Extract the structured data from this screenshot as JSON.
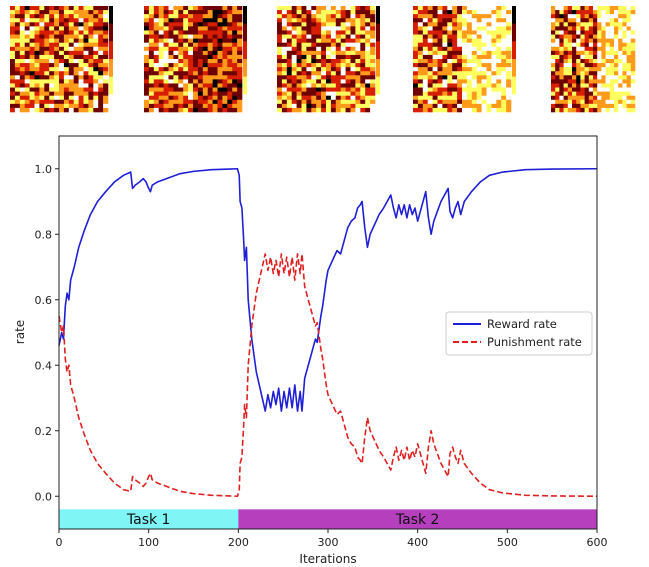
{
  "heatmaps": {
    "count": 5,
    "colormap": "hot",
    "colors": [
      "#ffffff",
      "#ffff60",
      "#ff9a1a",
      "#d81e00",
      "#6e0000",
      "#000000"
    ]
  },
  "chart_data": {
    "type": "line",
    "title": "",
    "xlabel": "Iterations",
    "ylabel": "rate",
    "xlim": [
      0,
      600
    ],
    "ylim": [
      -0.1,
      1.1
    ],
    "xticks": [
      0,
      100,
      200,
      300,
      400,
      500,
      600
    ],
    "yticks": [
      0.0,
      0.2,
      0.4,
      0.6,
      0.8,
      1.0
    ],
    "ytick_labels": [
      "0.0",
      "0.2",
      "0.4",
      "0.6",
      "0.8",
      "1.0"
    ],
    "grid": false,
    "legend_position": "center-right",
    "series": [
      {
        "name": "Reward rate",
        "style": "solid",
        "color": "#1f1fd6",
        "points": [
          [
            0,
            0.46
          ],
          [
            3,
            0.5
          ],
          [
            5,
            0.48
          ],
          [
            7,
            0.58
          ],
          [
            9,
            0.62
          ],
          [
            11,
            0.6
          ],
          [
            13,
            0.66
          ],
          [
            17,
            0.7
          ],
          [
            22,
            0.76
          ],
          [
            28,
            0.81
          ],
          [
            35,
            0.86
          ],
          [
            43,
            0.9
          ],
          [
            52,
            0.93
          ],
          [
            62,
            0.96
          ],
          [
            72,
            0.98
          ],
          [
            80,
            0.99
          ],
          [
            82,
            0.94
          ],
          [
            85,
            0.95
          ],
          [
            90,
            0.96
          ],
          [
            94,
            0.97
          ],
          [
            97,
            0.96
          ],
          [
            100,
            0.94
          ],
          [
            102,
            0.93
          ],
          [
            104,
            0.95
          ],
          [
            110,
            0.96
          ],
          [
            120,
            0.97
          ],
          [
            135,
            0.985
          ],
          [
            150,
            0.992
          ],
          [
            170,
            0.997
          ],
          [
            190,
            0.999
          ],
          [
            199,
            1.0
          ],
          [
            201,
            0.98
          ],
          [
            202,
            0.9
          ],
          [
            204,
            0.88
          ],
          [
            206,
            0.78
          ],
          [
            207,
            0.72
          ],
          [
            209,
            0.76
          ],
          [
            211,
            0.6
          ],
          [
            215,
            0.48
          ],
          [
            220,
            0.38
          ],
          [
            225,
            0.32
          ],
          [
            230,
            0.26
          ],
          [
            233,
            0.31
          ],
          [
            236,
            0.27
          ],
          [
            239,
            0.32
          ],
          [
            242,
            0.28
          ],
          [
            245,
            0.33
          ],
          [
            248,
            0.26
          ],
          [
            251,
            0.32
          ],
          [
            254,
            0.27
          ],
          [
            257,
            0.33
          ],
          [
            260,
            0.27
          ],
          [
            263,
            0.34
          ],
          [
            266,
            0.26
          ],
          [
            269,
            0.32
          ],
          [
            271,
            0.26
          ],
          [
            274,
            0.36
          ],
          [
            278,
            0.4
          ],
          [
            282,
            0.44
          ],
          [
            286,
            0.48
          ],
          [
            288,
            0.47
          ],
          [
            290,
            0.51
          ],
          [
            292,
            0.55
          ],
          [
            294,
            0.58
          ],
          [
            296,
            0.62
          ],
          [
            298,
            0.66
          ],
          [
            300,
            0.69
          ],
          [
            305,
            0.72
          ],
          [
            310,
            0.75
          ],
          [
            314,
            0.74
          ],
          [
            318,
            0.78
          ],
          [
            322,
            0.82
          ],
          [
            326,
            0.84
          ],
          [
            330,
            0.85
          ],
          [
            333,
            0.88
          ],
          [
            336,
            0.89
          ],
          [
            338,
            0.9
          ],
          [
            341,
            0.82
          ],
          [
            344,
            0.76
          ],
          [
            347,
            0.8
          ],
          [
            352,
            0.83
          ],
          [
            357,
            0.86
          ],
          [
            362,
            0.88
          ],
          [
            366,
            0.9
          ],
          [
            370,
            0.92
          ],
          [
            373,
            0.88
          ],
          [
            376,
            0.85
          ],
          [
            379,
            0.89
          ],
          [
            382,
            0.86
          ],
          [
            385,
            0.89
          ],
          [
            388,
            0.85
          ],
          [
            391,
            0.89
          ],
          [
            394,
            0.86
          ],
          [
            397,
            0.88
          ],
          [
            400,
            0.84
          ],
          [
            403,
            0.87
          ],
          [
            406,
            0.9
          ],
          [
            409,
            0.93
          ],
          [
            412,
            0.85
          ],
          [
            415,
            0.8
          ],
          [
            418,
            0.84
          ],
          [
            422,
            0.87
          ],
          [
            426,
            0.9
          ],
          [
            430,
            0.92
          ],
          [
            434,
            0.94
          ],
          [
            436,
            0.87
          ],
          [
            439,
            0.85
          ],
          [
            442,
            0.88
          ],
          [
            445,
            0.9
          ],
          [
            448,
            0.86
          ],
          [
            452,
            0.9
          ],
          [
            460,
            0.93
          ],
          [
            470,
            0.96
          ],
          [
            480,
            0.98
          ],
          [
            495,
            0.99
          ],
          [
            520,
            0.997
          ],
          [
            550,
            0.999
          ],
          [
            600,
            1.0
          ]
        ]
      },
      {
        "name": "Punishment rate",
        "style": "dashed",
        "color": "#e02020",
        "points": [
          [
            0,
            0.55
          ],
          [
            3,
            0.5
          ],
          [
            5,
            0.52
          ],
          [
            7,
            0.42
          ],
          [
            9,
            0.38
          ],
          [
            11,
            0.4
          ],
          [
            13,
            0.34
          ],
          [
            17,
            0.3
          ],
          [
            22,
            0.24
          ],
          [
            28,
            0.19
          ],
          [
            35,
            0.14
          ],
          [
            43,
            0.1
          ],
          [
            52,
            0.07
          ],
          [
            62,
            0.04
          ],
          [
            72,
            0.02
          ],
          [
            80,
            0.015
          ],
          [
            82,
            0.06
          ],
          [
            85,
            0.05
          ],
          [
            90,
            0.04
          ],
          [
            94,
            0.03
          ],
          [
            97,
            0.04
          ],
          [
            100,
            0.06
          ],
          [
            102,
            0.07
          ],
          [
            104,
            0.05
          ],
          [
            110,
            0.04
          ],
          [
            120,
            0.03
          ],
          [
            135,
            0.015
          ],
          [
            150,
            0.008
          ],
          [
            170,
            0.003
          ],
          [
            190,
            0.001
          ],
          [
            199,
            0.0
          ],
          [
            201,
            0.02
          ],
          [
            202,
            0.1
          ],
          [
            204,
            0.12
          ],
          [
            206,
            0.22
          ],
          [
            207,
            0.28
          ],
          [
            209,
            0.24
          ],
          [
            211,
            0.4
          ],
          [
            215,
            0.52
          ],
          [
            220,
            0.62
          ],
          [
            225,
            0.68
          ],
          [
            230,
            0.74
          ],
          [
            233,
            0.69
          ],
          [
            236,
            0.73
          ],
          [
            239,
            0.68
          ],
          [
            242,
            0.72
          ],
          [
            245,
            0.67
          ],
          [
            248,
            0.74
          ],
          [
            251,
            0.68
          ],
          [
            254,
            0.73
          ],
          [
            257,
            0.67
          ],
          [
            260,
            0.73
          ],
          [
            263,
            0.66
          ],
          [
            266,
            0.74
          ],
          [
            269,
            0.68
          ],
          [
            271,
            0.74
          ],
          [
            274,
            0.64
          ],
          [
            278,
            0.6
          ],
          [
            282,
            0.56
          ],
          [
            286,
            0.52
          ],
          [
            288,
            0.53
          ],
          [
            290,
            0.49
          ],
          [
            292,
            0.45
          ],
          [
            294,
            0.42
          ],
          [
            296,
            0.38
          ],
          [
            298,
            0.34
          ],
          [
            300,
            0.31
          ],
          [
            305,
            0.28
          ],
          [
            310,
            0.25
          ],
          [
            314,
            0.26
          ],
          [
            318,
            0.22
          ],
          [
            322,
            0.18
          ],
          [
            326,
            0.16
          ],
          [
            330,
            0.15
          ],
          [
            333,
            0.12
          ],
          [
            336,
            0.11
          ],
          [
            338,
            0.1
          ],
          [
            341,
            0.18
          ],
          [
            344,
            0.24
          ],
          [
            347,
            0.2
          ],
          [
            352,
            0.17
          ],
          [
            357,
            0.14
          ],
          [
            362,
            0.12
          ],
          [
            366,
            0.1
          ],
          [
            370,
            0.08
          ],
          [
            373,
            0.12
          ],
          [
            376,
            0.15
          ],
          [
            379,
            0.11
          ],
          [
            382,
            0.14
          ],
          [
            385,
            0.11
          ],
          [
            388,
            0.15
          ],
          [
            391,
            0.11
          ],
          [
            394,
            0.14
          ],
          [
            397,
            0.12
          ],
          [
            400,
            0.16
          ],
          [
            403,
            0.13
          ],
          [
            406,
            0.1
          ],
          [
            409,
            0.07
          ],
          [
            412,
            0.15
          ],
          [
            415,
            0.2
          ],
          [
            418,
            0.16
          ],
          [
            422,
            0.13
          ],
          [
            426,
            0.1
          ],
          [
            430,
            0.08
          ],
          [
            434,
            0.06
          ],
          [
            436,
            0.13
          ],
          [
            439,
            0.15
          ],
          [
            442,
            0.12
          ],
          [
            445,
            0.1
          ],
          [
            448,
            0.14
          ],
          [
            452,
            0.1
          ],
          [
            460,
            0.07
          ],
          [
            470,
            0.04
          ],
          [
            480,
            0.02
          ],
          [
            495,
            0.01
          ],
          [
            520,
            0.003
          ],
          [
            550,
            0.001
          ],
          [
            600,
            0.0
          ]
        ]
      }
    ],
    "segments": [
      {
        "label": "Task 1",
        "start": 0,
        "end": 200,
        "color": "#7ff5f5"
      },
      {
        "label": "Task 2",
        "start": 200,
        "end": 600,
        "color": "#b53fbd"
      }
    ]
  }
}
